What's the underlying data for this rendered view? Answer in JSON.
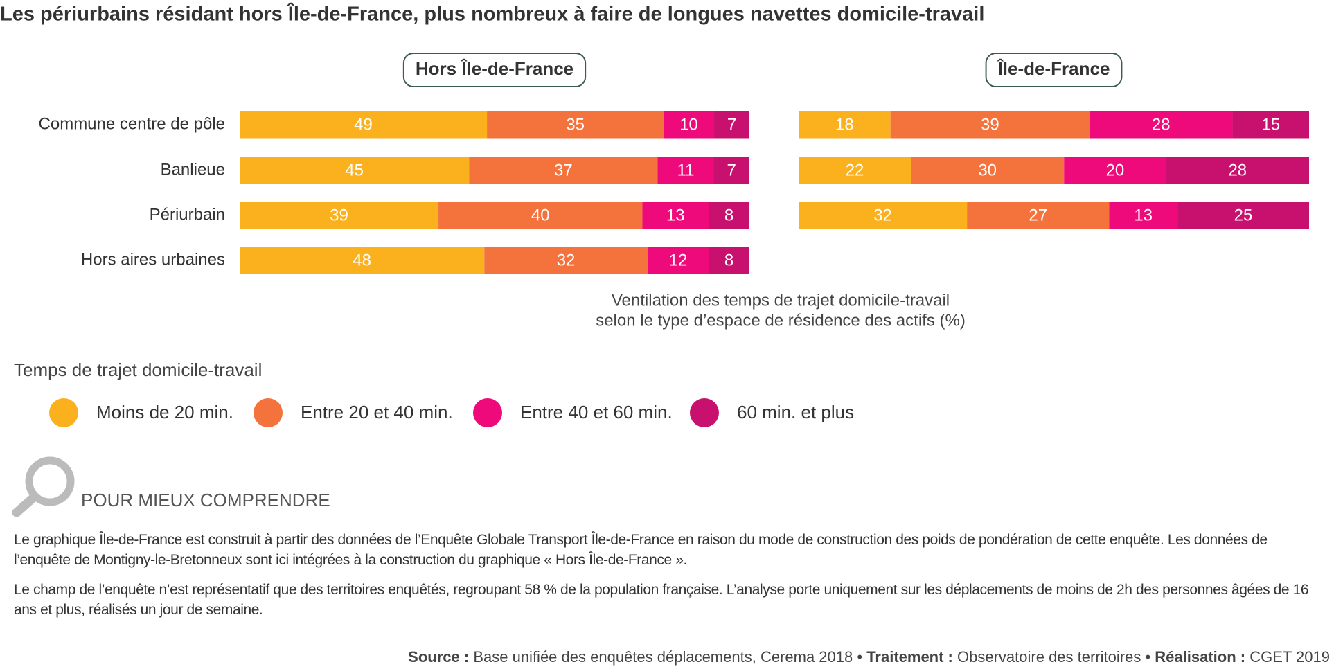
{
  "header": {
    "title": "Les périurbains résidant hors Île-de-France, plus nombreux à faire de longues navettes domicile-travail"
  },
  "chart_data": {
    "type": "bar",
    "stacked": true,
    "orientation": "horizontal",
    "title": "Ventilation des temps de trajet domicile-travail",
    "subtitle": "selon le type d’espace de résidence des actifs (%)",
    "legend_title": "Temps de trajet domicile-travail",
    "categories": [
      "Commune centre de pôle",
      "Banlieue",
      "Périurbain",
      "Hors aires urbaines"
    ],
    "series": [
      {
        "name": "Moins de 20 min.",
        "color": "#fbb01d"
      },
      {
        "name": "Entre 20 et 40 min.",
        "color": "#f4733d"
      },
      {
        "name": "Entre 40 et 60 min.",
        "color": "#ee0a7b"
      },
      {
        "name": "60 min. et plus",
        "color": "#c8106e"
      }
    ],
    "panels": [
      {
        "title": "Hors Île-de-France",
        "values": [
          [
            49,
            45,
            39,
            48
          ],
          [
            35,
            37,
            40,
            32
          ],
          [
            10,
            11,
            13,
            12
          ],
          [
            7,
            7,
            8,
            8
          ]
        ]
      },
      {
        "title": "Île-de-France",
        "values": [
          [
            18,
            22,
            32,
            null
          ],
          [
            39,
            30,
            27,
            null
          ],
          [
            28,
            20,
            13,
            null
          ],
          [
            15,
            28,
            25,
            null
          ]
        ]
      }
    ]
  },
  "notes": {
    "heading": "POUR MIEUX COMPRENDRE",
    "paragraphs": [
      "Le graphique Île-de-France est construit à partir des données de l’Enquête Globale Transport Île-de-France en raison du mode de construction des poids de pondération de cette enquête. Les données de l’enquête de Montigny-le-Bretonneux sont ici intégrées à la construction du graphique « Hors Île-de-France ».",
      "Le champ de l’enquête n’est représentatif que des territoires enquêtés, regroupant 58 % de la population française. L’analyse porte uniquement sur les déplacements de moins de 2h des personnes âgées de 16 ans et plus, réalisés un jour de semaine."
    ]
  },
  "source": [
    {
      "label": "Source :",
      "text": "Base unifiée des enquêtes déplacements, Cerema 2018"
    },
    {
      "label": "Traitement :",
      "text": "Observatoire des territoires"
    },
    {
      "label": "Réalisation :",
      "text": "CGET 2019"
    }
  ]
}
